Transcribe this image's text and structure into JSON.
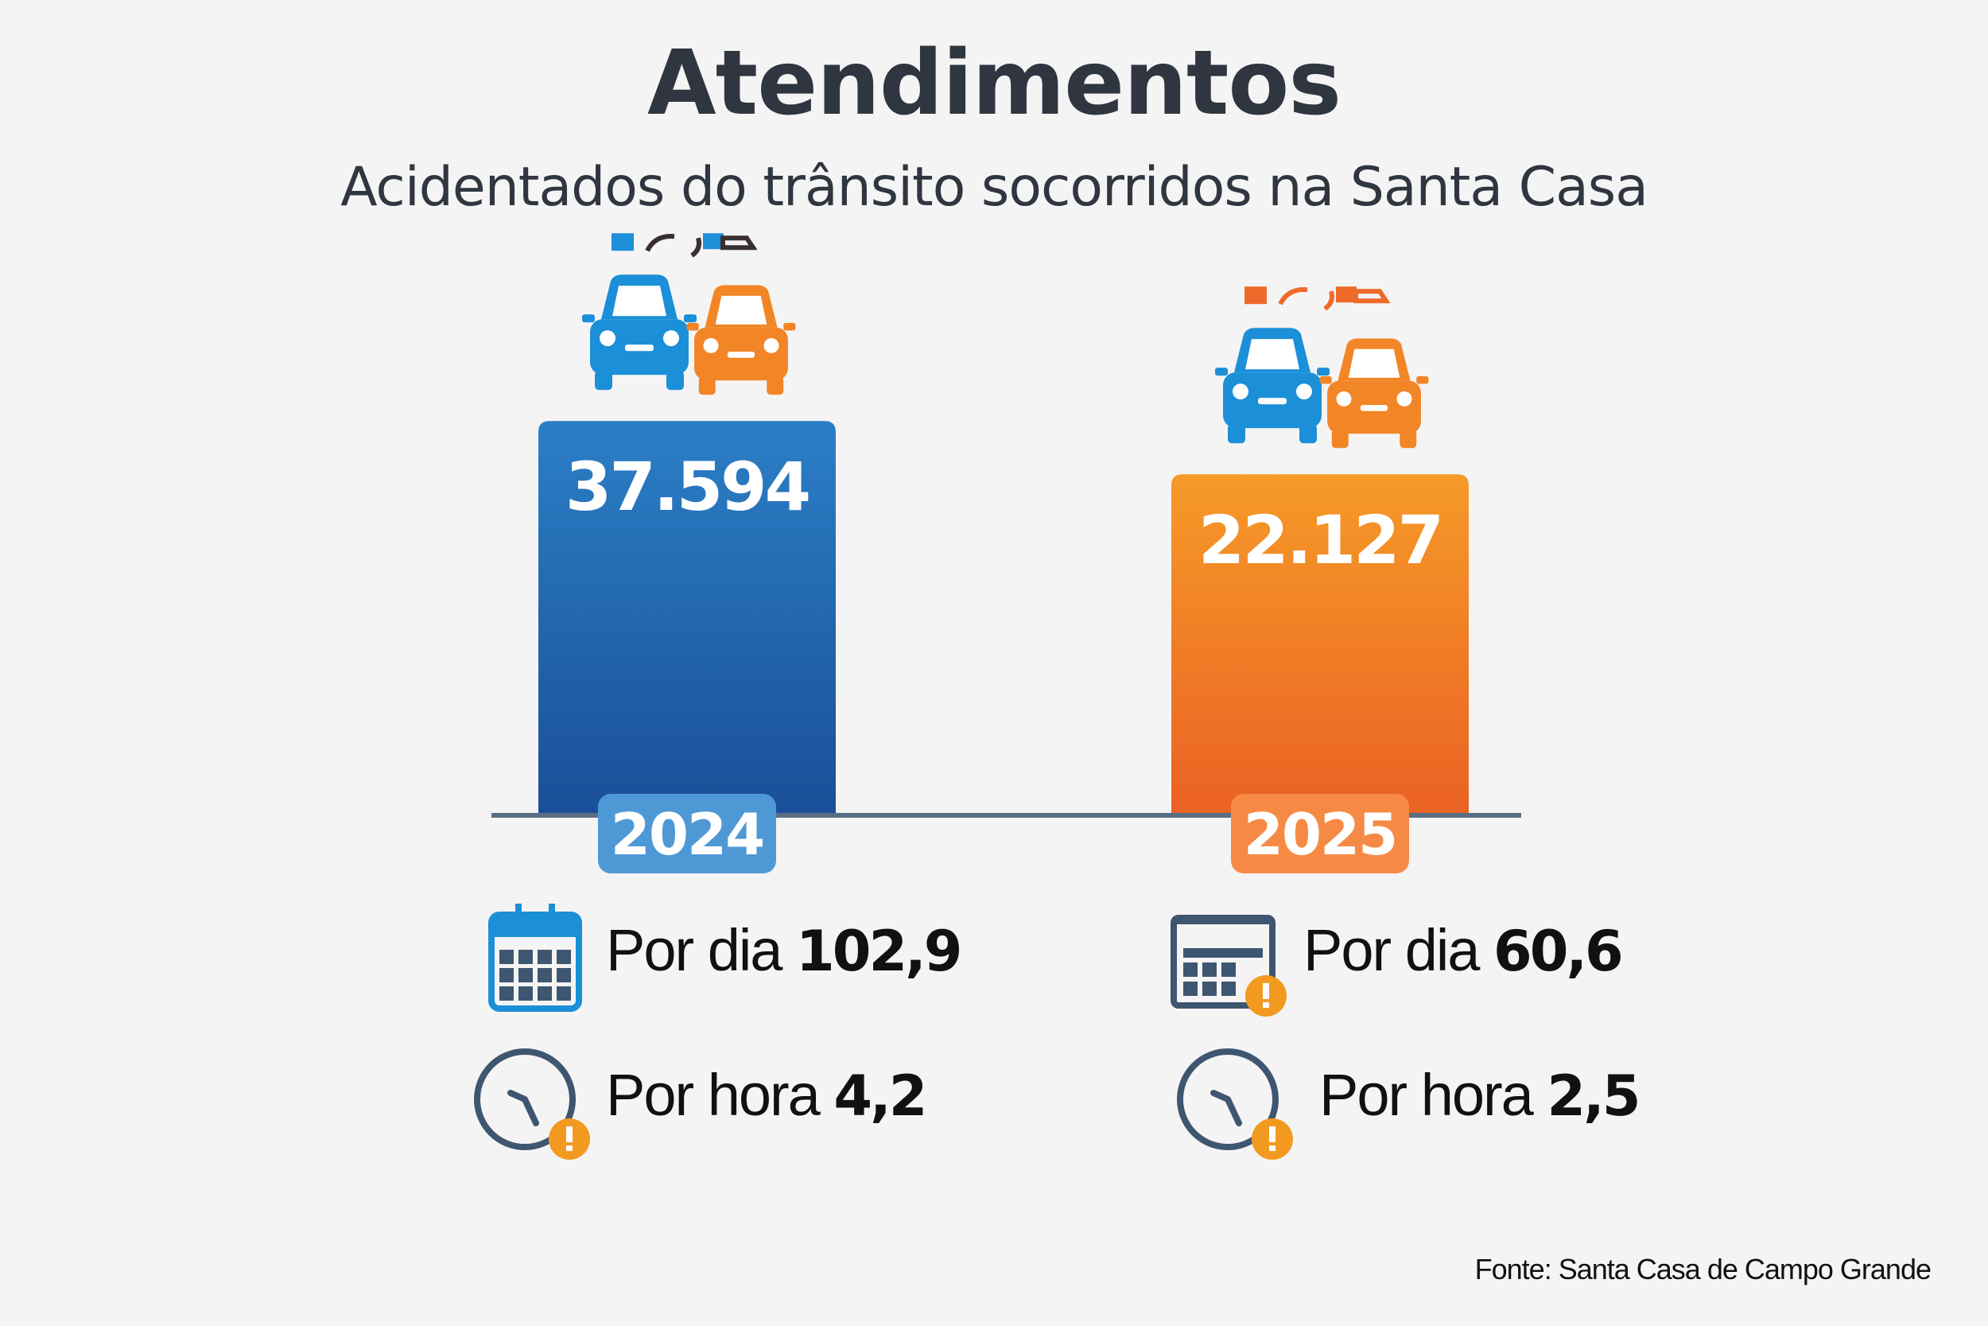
{
  "chart_data": {
    "type": "bar",
    "title": "Atendimentos",
    "subtitle": "Acidentados do trânsito socorridos na Santa Casa",
    "categories": [
      "2024",
      "2025"
    ],
    "values": [
      37594,
      22127
    ],
    "value_labels": [
      "37.594",
      "22.127"
    ],
    "colors": [
      "#1f63ab",
      "#f0782a"
    ],
    "year_badge_colors": [
      "#4f98d6",
      "#f68a45"
    ],
    "grid": false,
    "legend": "none",
    "axis_color": "#5a6f85"
  },
  "stats": [
    {
      "year": "2024",
      "per_day_label": "Por dia",
      "per_day_value": "102,9",
      "per_hour_label": "Por hora",
      "per_hour_value": "4,2",
      "calendar_icon": "calendar-icon",
      "clock_icon": "clock-alert-icon"
    },
    {
      "year": "2025",
      "per_day_label": "Por dia",
      "per_day_value": "60,6",
      "per_hour_label": "Por hora",
      "per_hour_value": "2,5",
      "calendar_icon": "calendar-alert-icon",
      "clock_icon": "clock-alert-icon"
    }
  ],
  "icons": {
    "cars": "car-collision-icon"
  },
  "source": "Fonte: Santa Casa de Campo Grande"
}
